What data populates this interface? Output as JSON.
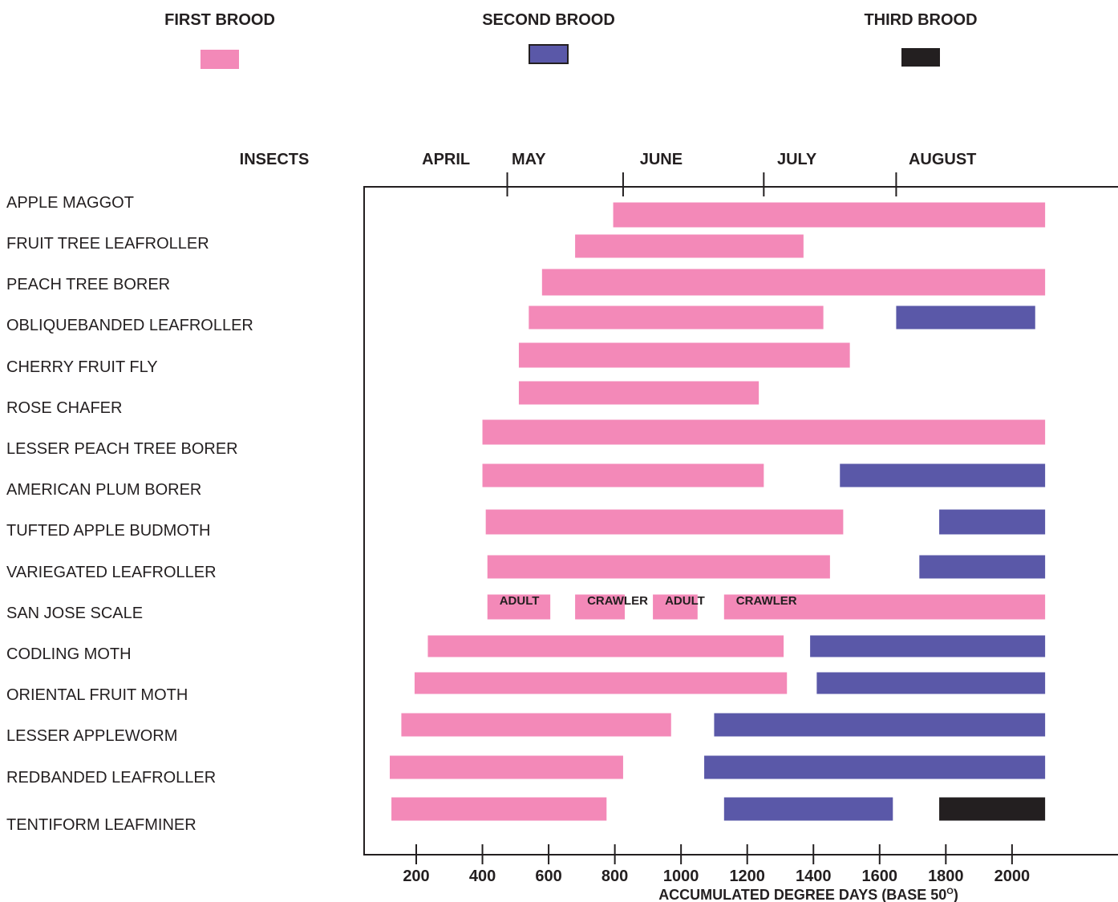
{
  "chart_data": {
    "type": "gantt",
    "xlabel": "ACCUMULATED DEGREE DAYS (BASE 50",
    "xlabel_degree": "O",
    "xlabel_close": ")",
    "x_ticks": [
      200,
      400,
      600,
      800,
      1000,
      1200,
      1400,
      1600,
      1800,
      2000
    ],
    "x_tick_labels": [
      "200",
      "400",
      "600",
      "800",
      "1000",
      "1200",
      "1400",
      "1600",
      "1800",
      "2000"
    ],
    "row_header": "INSECTS",
    "months": [
      {
        "label": "APRIL",
        "center": 290
      },
      {
        "label": "MAY",
        "center": 540
      },
      {
        "label": "JUNE",
        "center": 940
      },
      {
        "label": "JULY",
        "center": 1350
      },
      {
        "label": "AUGUST",
        "center": 1790
      }
    ],
    "month_boundaries": [
      475,
      825,
      1250,
      1650
    ],
    "legend": [
      {
        "label": "FIRST BROOD",
        "color": "#f389b8"
      },
      {
        "label": "SECOND BROOD",
        "color": "#5a58a8"
      },
      {
        "label": "THIRD BROOD",
        "color": "#231f20"
      }
    ],
    "series": [
      {
        "name": "APPLE MAGGOT",
        "bars": [
          {
            "brood": 1,
            "start": 795,
            "end": 2100
          }
        ]
      },
      {
        "name": "FRUIT TREE LEAFROLLER",
        "bars": [
          {
            "brood": 1,
            "start": 680,
            "end": 1370
          }
        ]
      },
      {
        "name": "PEACH TREE BORER",
        "bars": [
          {
            "brood": 1,
            "start": 580,
            "end": 2100
          }
        ]
      },
      {
        "name": "OBLIQUEBANDED LEAFROLLER",
        "bars": [
          {
            "brood": 1,
            "start": 540,
            "end": 1430
          },
          {
            "brood": 2,
            "start": 1650,
            "end": 2070
          }
        ]
      },
      {
        "name": "CHERRY FRUIT FLY",
        "bars": [
          {
            "brood": 1,
            "start": 510,
            "end": 1510
          }
        ]
      },
      {
        "name": "ROSE CHAFER",
        "bars": [
          {
            "brood": 1,
            "start": 510,
            "end": 1235
          }
        ]
      },
      {
        "name": "LESSER PEACH TREE BORER",
        "bars": [
          {
            "brood": 1,
            "start": 400,
            "end": 2100
          }
        ]
      },
      {
        "name": "AMERICAN PLUM BORER",
        "bars": [
          {
            "brood": 1,
            "start": 400,
            "end": 1250
          },
          {
            "brood": 2,
            "start": 1480,
            "end": 2100
          }
        ]
      },
      {
        "name": "TUFTED APPLE BUDMOTH",
        "bars": [
          {
            "brood": 1,
            "start": 410,
            "end": 1490
          },
          {
            "brood": 2,
            "start": 1780,
            "end": 2100
          }
        ]
      },
      {
        "name": "VARIEGATED LEAFROLLER",
        "bars": [
          {
            "brood": 1,
            "start": 415,
            "end": 1450
          },
          {
            "brood": 2,
            "start": 1720,
            "end": 2100
          }
        ]
      },
      {
        "name": "SAN JOSE SCALE",
        "bars": [
          {
            "brood": 1,
            "start": 415,
            "end": 605,
            "label": "ADULT"
          },
          {
            "brood": 1,
            "start": 680,
            "end": 830,
            "label": "CRAWLER"
          },
          {
            "brood": 1,
            "start": 915,
            "end": 1050,
            "label": "ADULT"
          },
          {
            "brood": 1,
            "start": 1130,
            "end": 2100,
            "label": "CRAWLER"
          }
        ]
      },
      {
        "name": "CODLING MOTH",
        "bars": [
          {
            "brood": 1,
            "start": 235,
            "end": 1310
          },
          {
            "brood": 2,
            "start": 1390,
            "end": 2100
          }
        ]
      },
      {
        "name": "ORIENTAL FRUIT MOTH",
        "bars": [
          {
            "brood": 1,
            "start": 195,
            "end": 1320
          },
          {
            "brood": 2,
            "start": 1410,
            "end": 2100
          }
        ]
      },
      {
        "name": "LESSER APPLEWORM",
        "bars": [
          {
            "brood": 1,
            "start": 155,
            "end": 970
          },
          {
            "brood": 2,
            "start": 1100,
            "end": 2100
          }
        ]
      },
      {
        "name": "REDBANDED LEAFROLLER",
        "bars": [
          {
            "brood": 1,
            "start": 120,
            "end": 825
          },
          {
            "brood": 2,
            "start": 1070,
            "end": 2100
          }
        ]
      },
      {
        "name": "TENTIFORM LEAFMINER",
        "bars": [
          {
            "brood": 1,
            "start": 125,
            "end": 775
          },
          {
            "brood": 2,
            "start": 1130,
            "end": 1640
          },
          {
            "brood": 3,
            "start": 1780,
            "end": 2100
          }
        ]
      }
    ]
  }
}
